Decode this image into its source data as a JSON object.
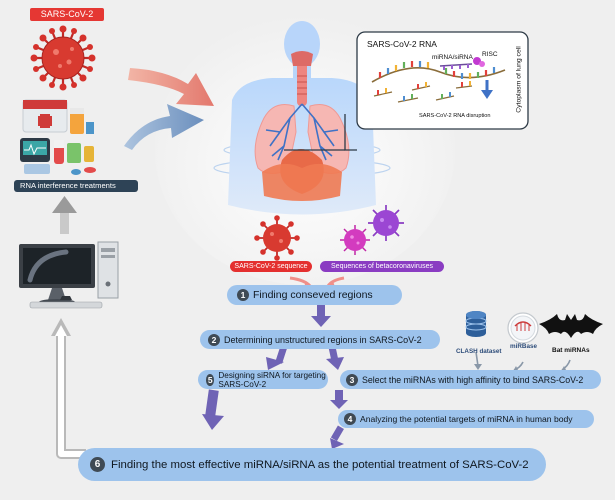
{
  "labels": {
    "sars_cov2_title": "SARS-CoV-2",
    "rna_treatments": "RNA interference treatments",
    "sars_cov2_rna": "SARS-CoV-2 RNA",
    "mirna_sirna": "miRNA/siRNA",
    "risc": "RISC",
    "rna_disruption": "SARS-CoV-2 RNA disruption",
    "cytoplasm": "Cytoplasm of lung cell",
    "sars_sequence": "SARS-CoV-2 sequence",
    "betacorona_sequences": "Sequences of betacoronaviruses",
    "clash": "CLASH dataset",
    "mirbase": "miRBase",
    "bat_mirnas": "Bat miRNAs"
  },
  "steps": [
    {
      "num": "1",
      "text": "Finding conseved regions"
    },
    {
      "num": "2",
      "text": "Determining unstructured regions in SARS-CoV-2"
    },
    {
      "num": "3",
      "text": "Select the miRNAs with high affinity to bind SARS-CoV-2"
    },
    {
      "num": "4",
      "text": "Analyzing the potential targets of miRNA in human body"
    },
    {
      "num": "5",
      "text": "Designing siRNA for targeting SARS-CoV-2"
    },
    {
      "num": "6",
      "text": "Finding the most effective miRNA/siRNA as the potential treatment of SARS-CoV-2"
    }
  ],
  "colors": {
    "virus_red": "#d5322c",
    "virus_magenta": "#c026a6",
    "pill_blue": "#9dc3ec",
    "arrow_purple": "#6f63b5",
    "dark_pill": "#2e4356"
  },
  "icons": [
    "coronavirus-icon",
    "medicine-kit-icon",
    "computer-icon",
    "lungs-icon",
    "database-icon",
    "mirbase-icon",
    "bat-icon"
  ]
}
